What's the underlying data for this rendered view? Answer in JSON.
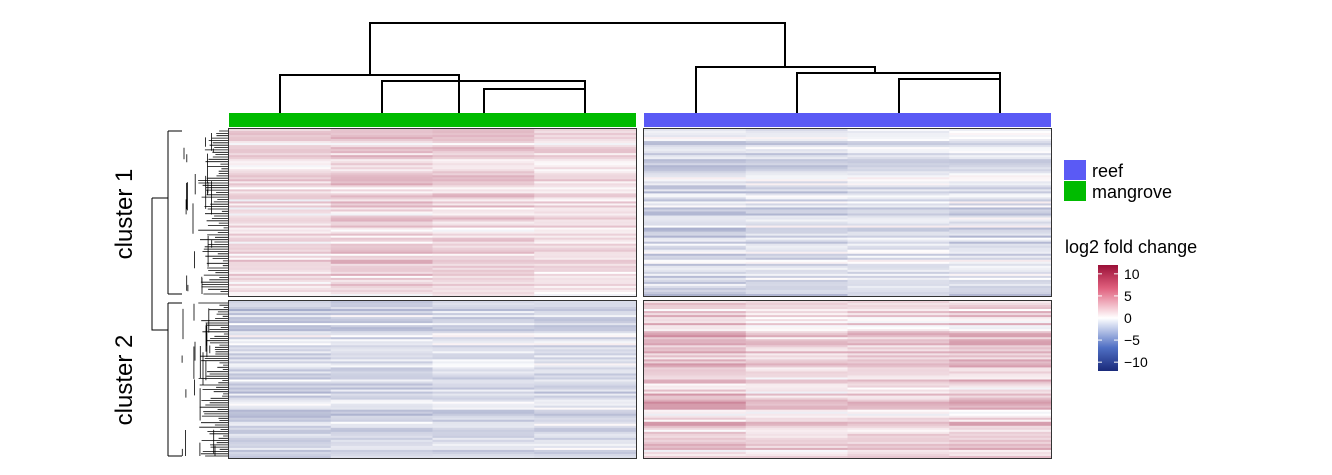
{
  "chart_data": {
    "type": "heatmap",
    "title": "",
    "column_groups": [
      {
        "name": "mangrove",
        "color": "#00bb00",
        "columns": 4
      },
      {
        "name": "reef",
        "color": "#5a5af5",
        "columns": 4
      }
    ],
    "row_clusters": [
      {
        "label": "cluster 1",
        "mean_values": [
          1.2,
          1.6,
          1.4,
          1.0,
          -1.8,
          -1.5,
          -1.2,
          -1.4
        ]
      },
      {
        "label": "cluster 2",
        "mean_values": [
          -1.6,
          -1.4,
          -1.3,
          -1.4,
          2.4,
          1.6,
          1.7,
          2.1
        ]
      }
    ],
    "legend": {
      "groups_title": "",
      "groups": [
        {
          "label": "reef",
          "color": "#5a5af5"
        },
        {
          "label": "mangrove",
          "color": "#00bb00"
        }
      ],
      "color_scale": {
        "title": "log2 fold change",
        "min": -12,
        "max": 12,
        "ticks": [
          {
            "value": 10,
            "label": "10"
          },
          {
            "value": 5,
            "label": "5"
          },
          {
            "value": 0,
            "label": "0"
          },
          {
            "value": -5,
            "label": "−5"
          },
          {
            "value": -10,
            "label": "−10"
          }
        ],
        "colors": {
          "low": "#1a2a7a",
          "mid": "#ffffff",
          "high": "#9b1038"
        }
      }
    },
    "column_dendrogram": true,
    "row_dendrogram": true
  }
}
